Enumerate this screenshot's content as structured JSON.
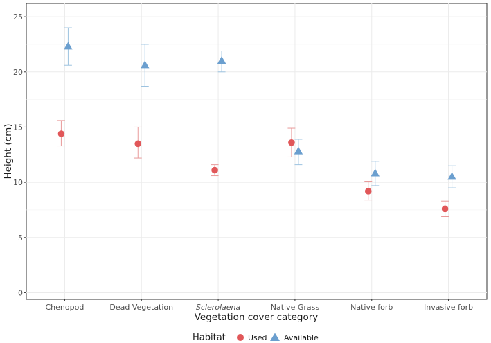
{
  "chart_data": {
    "type": "scatter",
    "title": "",
    "xlabel": "Vegetation cover category",
    "ylabel": "Height (cm)",
    "categories": [
      "Chenopod",
      "Dead Vegetation",
      "Sclerolaena",
      "Native Grass",
      "Native forb",
      "Invasive forb"
    ],
    "italic_categories": [
      "Sclerolaena"
    ],
    "yticks": [
      0,
      5,
      10,
      15,
      20,
      25
    ],
    "ylim": [
      -0.6,
      26.2
    ],
    "grid": true,
    "legend": {
      "title": "Habitat",
      "position": "bottom"
    },
    "series": [
      {
        "name": "Used",
        "marker": "circle",
        "color": "#E15759",
        "bar_color": "#E89A9A",
        "values": [
          14.4,
          13.5,
          11.1,
          13.6,
          9.2,
          7.6
        ],
        "lower": [
          13.3,
          12.2,
          10.6,
          12.3,
          8.4,
          6.9
        ],
        "upper": [
          15.6,
          15.0,
          11.6,
          14.9,
          10.1,
          8.3
        ]
      },
      {
        "name": "Available",
        "marker": "triangle",
        "color": "#6B9FCF",
        "bar_color": "#9DC3E0",
        "values": [
          22.3,
          20.6,
          21.0,
          12.8,
          10.8,
          10.5
        ],
        "lower": [
          20.6,
          18.7,
          20.0,
          11.6,
          9.7,
          9.5
        ],
        "upper": [
          24.0,
          22.5,
          21.9,
          13.9,
          11.9,
          11.5
        ]
      }
    ]
  }
}
